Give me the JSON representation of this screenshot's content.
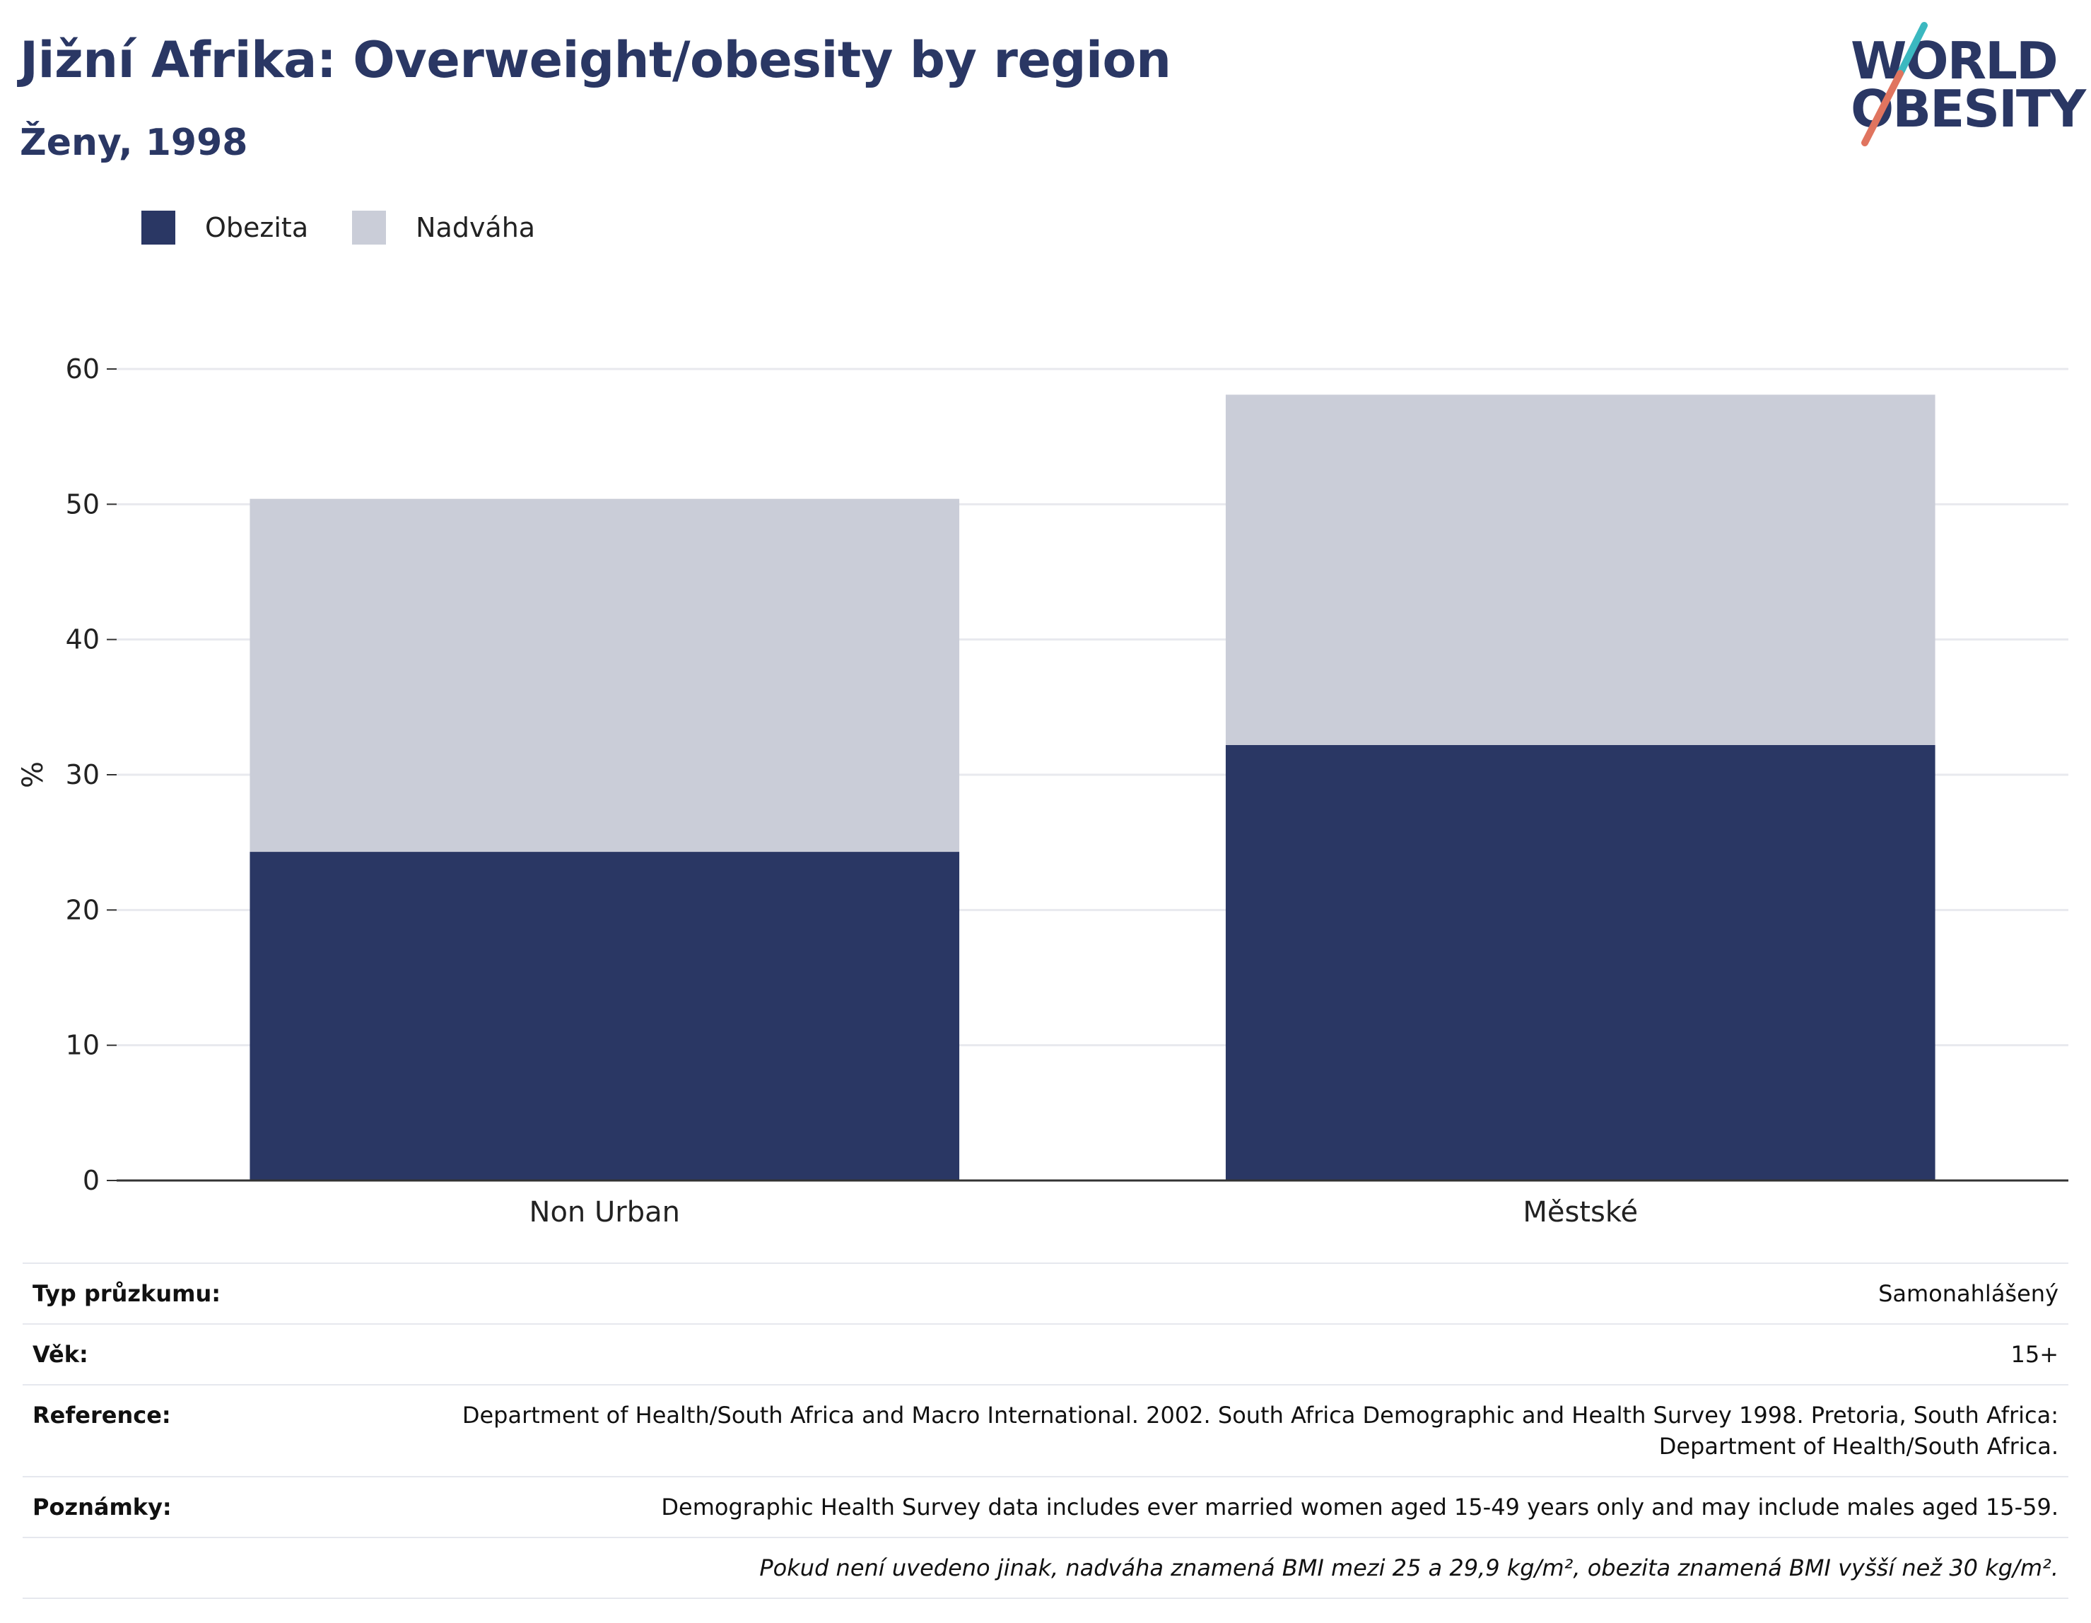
{
  "header": {
    "title": "Jižní Afrika: Overweight/obesity by region",
    "subtitle": "Ženy, 1998"
  },
  "logo": {
    "line1": "WORLD",
    "line2": "OBESITY"
  },
  "colors": {
    "obesity": "#2a3764",
    "overweight": "#cacdd8",
    "title": "#2a3764",
    "grid": "#e8e9ee",
    "axis": "#333333"
  },
  "legend": {
    "items": [
      "Obezita",
      "Nadváha"
    ]
  },
  "chart_data": {
    "type": "bar",
    "stacked": true,
    "categories": [
      "Non Urban",
      "Městské"
    ],
    "series": [
      {
        "name": "Obezita",
        "values": [
          24.3,
          32.2
        ]
      },
      {
        "name": "Nadváha",
        "values": [
          26.1,
          25.9
        ]
      }
    ],
    "ylabel": "%",
    "ylim": [
      0,
      60
    ],
    "yticks": [
      0,
      10,
      20,
      30,
      40,
      50,
      60
    ],
    "grid": true,
    "legend_position": "top-left"
  },
  "info": {
    "rows": [
      {
        "key": "Typ průzkumu:",
        "value": "Samonahlášený"
      },
      {
        "key": "Věk:",
        "value": "15+"
      },
      {
        "key": "Reference:",
        "value": "Department of Health/South Africa and Macro International. 2002. South Africa Demographic and Health Survey 1998. Pretoria, South Africa: Department of Health/South Africa."
      },
      {
        "key": "Poznámky:",
        "value": "Demographic Health Survey data includes ever married women aged 15-49 years only and may include males aged 15-59."
      }
    ],
    "footnote": "Pokud není uvedeno jinak, nadváha znamená BMI mezi 25 a 29,9 kg/m², obezita znamená BMI vyšší než 30 kg/m²."
  }
}
